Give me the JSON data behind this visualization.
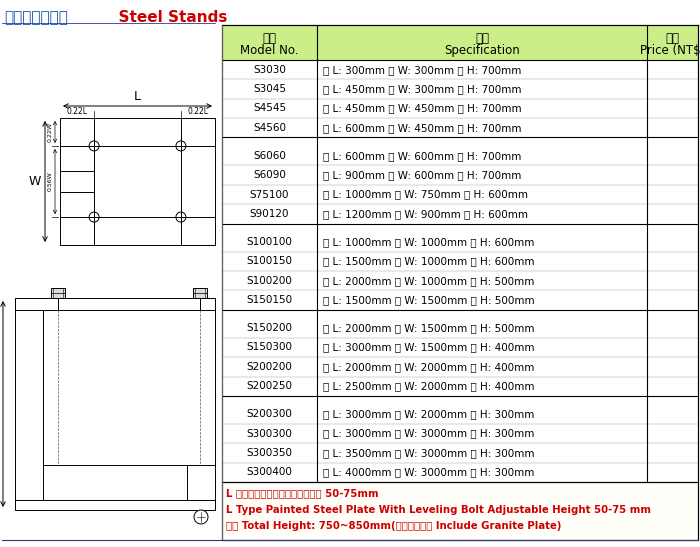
{
  "title_chinese": "花崗石平台腳架",
  "title_english": "  Steel Stands",
  "title_color_chinese": "#1155AA",
  "title_color_english": "#CC0000",
  "header_bg_color": "#CCEE88",
  "groups": [
    {
      "rows": [
        [
          "S3030",
          "長 L: 300mm 寬 W: 300mm 高 H: 700mm"
        ],
        [
          "S3045",
          "長 L: 450mm 寬 W: 300mm 高 H: 700mm"
        ],
        [
          "S4545",
          "長 L: 450mm 寬 W: 450mm 高 H: 700mm"
        ],
        [
          "S4560",
          "長 L: 600mm 寬 W: 450mm 高 H: 700mm"
        ]
      ]
    },
    {
      "rows": [
        [
          "S6060",
          "長 L: 600mm 寬 W: 600mm 高 H: 700mm"
        ],
        [
          "S6090",
          "長 L: 900mm 寬 W: 600mm 高 H: 700mm"
        ],
        [
          "S75100",
          "長 L: 1000mm 寬 W: 750mm 高 H: 600mm"
        ],
        [
          "S90120",
          "長 L: 1200mm 寬 W: 900mm 高 H: 600mm"
        ]
      ]
    },
    {
      "rows": [
        [
          "S100100",
          "長 L: 1000mm 寬 W: 1000mm 高 H: 600mm"
        ],
        [
          "S100150",
          "長 L: 1500mm 寬 W: 1000mm 高 H: 600mm"
        ],
        [
          "S100200",
          "長 L: 2000mm 寬 W: 1000mm 高 H: 500mm"
        ],
        [
          "S150150",
          "長 L: 1500mm 寬 W: 1500mm 高 H: 500mm"
        ]
      ]
    },
    {
      "rows": [
        [
          "S150200",
          "長 L: 2000mm 寬 W: 1500mm 高 H: 500mm"
        ],
        [
          "S150300",
          "長 L: 3000mm 寬 W: 1500mm 高 H: 400mm"
        ],
        [
          "S200200",
          "長 L: 2000mm 寬 W: 2000mm 高 H: 400mm"
        ],
        [
          "S200250",
          "長 L: 2500mm 寬 W: 2000mm 高 H: 400mm"
        ]
      ]
    },
    {
      "rows": [
        [
          "S200300",
          "長 L: 3000mm 寬 W: 2000mm 高 H: 300mm"
        ],
        [
          "S300300",
          "長 L: 3000mm 寬 W: 3000mm 高 H: 300mm"
        ],
        [
          "S300350",
          "長 L: 3500mm 寬 W: 3000mm 高 H: 300mm"
        ],
        [
          "S300400",
          "長 L: 4000mm 寬 W: 3000mm 高 H: 300mm"
        ]
      ]
    }
  ],
  "footer_lines": [
    "L 型噴漆鋼板附水平螺栓可調高度 50-75mm",
    "L Type Painted Steel Plate With Leveling Bolt Adjustable Height 50-75 mm",
    "總高 Total Height: 750~850mm(含花崗石平台 Include Granite Plate)"
  ],
  "footer_color": "#CC0000",
  "bg_color": "#FFFFFF"
}
